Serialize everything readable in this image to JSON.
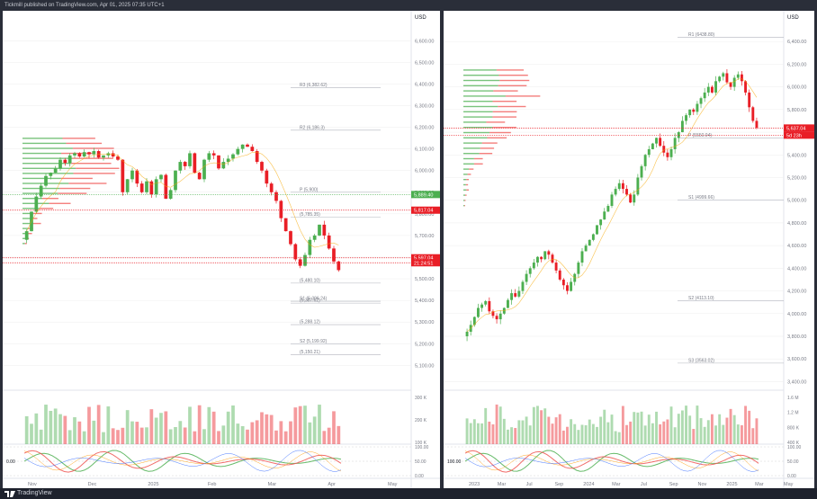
{
  "header": {
    "text": "Tickmill published on TradingView.com, Apr 01, 2025 07:35 UTC+1"
  },
  "footer": {
    "brand": "TradingView"
  },
  "colors": {
    "bull": "#26a69a",
    "bear": "#ef5350",
    "green": "#4caf50",
    "red": "#e91e26",
    "grid": "#eeeeee",
    "axis": "#787b86"
  },
  "chart_data": [
    {
      "type": "candlestick",
      "currency": "USD",
      "y_ticks": [
        "6,600.00",
        "6,500.00",
        "6,400.00",
        "6,300.00",
        "6,200.00",
        "6,100.00",
        "6,000.00",
        "5,900.00",
        "5,800.00",
        "5,700.00",
        "5,600.00",
        "5,500.00",
        "5,400.00",
        "5,300.00",
        "5,200.00",
        "5,100.00"
      ],
      "ylim": [
        5060,
        6680
      ],
      "x_labels": [
        "Nov",
        "Dec",
        "2025",
        "Feb",
        "Mar",
        "Apr",
        "May"
      ],
      "price_tags": [
        {
          "price": 5889.4,
          "label": "5,889.40",
          "color": "#4caf50"
        },
        {
          "price": 5817.04,
          "label": "5,817.04",
          "color": "#e91e26"
        },
        {
          "price": 5597.04,
          "label": "5,597.04",
          "color": "#e91e26"
        },
        {
          "price": 5574,
          "label": "21:24:51",
          "color": "#e91e26"
        }
      ],
      "pivot_labels": [
        {
          "price": 6382.62,
          "label": "R3 (6,382.62)"
        },
        {
          "price": 6186.3,
          "label": "R2 (6,186.3)"
        },
        {
          "price": 5900,
          "label": "P (5,900)"
        },
        {
          "price": 5785.35,
          "label": "(5,785.35)"
        },
        {
          "price": 5480.1,
          "label": "(5,480.10)"
        },
        {
          "price": 5396.24,
          "label": "S1 (5,396.24)"
        },
        {
          "price": 5387.62,
          "label": "(5,387.62)"
        },
        {
          "price": 5288.12,
          "label": "(5,288.12)"
        },
        {
          "price": 5199.92,
          "label": "S2 (5,199.92)"
        },
        {
          "price": 5150.21,
          "label": "(5,150.21)"
        }
      ],
      "volume_ticks": [
        "300 K",
        "200 K",
        "100 K"
      ],
      "osc_ticks": [
        "100.00",
        "50.00",
        "0.00"
      ],
      "osc_left_label": "0.00",
      "closes": [
        5720,
        5810,
        5880,
        5930,
        5975,
        5990,
        6010,
        6050,
        6035,
        6070,
        6080,
        6065,
        6085,
        6075,
        6090,
        6060,
        6070,
        6080,
        6065,
        6050,
        5900,
        5960,
        6000,
        5940,
        5900,
        5950,
        5890,
        5960,
        5980,
        5870,
        5910,
        6000,
        6040,
        6020,
        6080,
        5990,
        5960,
        6050,
        6080,
        6070,
        6010,
        6040,
        6055,
        6075,
        6100,
        6120,
        6110,
        6090,
        6040,
        6000,
        5940,
        5900,
        5860,
        5780,
        5720,
        5660,
        5590,
        5560,
        5610,
        5680,
        5700,
        5750,
        5700,
        5640,
        5580,
        5540
      ]
    },
    {
      "type": "candlestick",
      "currency": "USD",
      "y_ticks": [
        "6,400.00",
        "6,200.00",
        "6,000.00",
        "5,800.00",
        "5,600.00",
        "5,400.00",
        "5,200.00",
        "5,000.00",
        "4,800.00",
        "4,600.00",
        "4,400.00",
        "4,200.00",
        "4,000.00",
        "3,800.00",
        "3,600.00",
        "3,400.00"
      ],
      "ylim": [
        3340,
        6560
      ],
      "x_labels": [
        "2023",
        "Mar",
        "Jul",
        "Sep",
        "2024",
        "Mar",
        "Jul",
        "Sep",
        "Nov",
        "2025",
        "Mar",
        "May"
      ],
      "price_tags": [
        {
          "price": 5637.04,
          "label": "5,637.04",
          "color": "#e91e26"
        },
        {
          "price": 5574,
          "label": "5d 23h",
          "color": "#e91e26"
        }
      ],
      "pivot_labels": [
        {
          "price": 6438.8,
          "label": "R1 (6438.80)"
        },
        {
          "price": 5550,
          "label": "P (5550.04)"
        },
        {
          "price": 5000,
          "label": "S1 (4999.66)"
        },
        {
          "price": 4113.1,
          "label": "S2 (4113.10)"
        },
        {
          "price": 3563,
          "label": "S3 (3563.02)"
        }
      ],
      "volume_ticks": [
        "1.6 M",
        "1.2 M",
        "800 K",
        "400 K"
      ],
      "osc_ticks": [
        "100.00",
        "50.00",
        "0.00"
      ],
      "osc_left_label": "100.00",
      "closes": [
        3840,
        3900,
        3970,
        4050,
        4080,
        4110,
        4020,
        3980,
        3950,
        4000,
        4050,
        4120,
        4180,
        4150,
        4200,
        4280,
        4350,
        4400,
        4450,
        4500,
        4480,
        4550,
        4520,
        4450,
        4380,
        4300,
        4250,
        4200,
        4280,
        4350,
        4450,
        4550,
        4600,
        4650,
        4700,
        4780,
        4830,
        4900,
        4950,
        5050,
        5100,
        5150,
        5100,
        5050,
        4980,
        5050,
        5200,
        5300,
        5400,
        5450,
        5500,
        5550,
        5480,
        5420,
        5380,
        5450,
        5550,
        5600,
        5700,
        5750,
        5800,
        5780,
        5850,
        5900,
        5950,
        6000,
        5950,
        6050,
        6090,
        6120,
        6040,
        6000,
        6080,
        6110,
        6050,
        5950,
        5820,
        5700,
        5640
      ]
    }
  ]
}
